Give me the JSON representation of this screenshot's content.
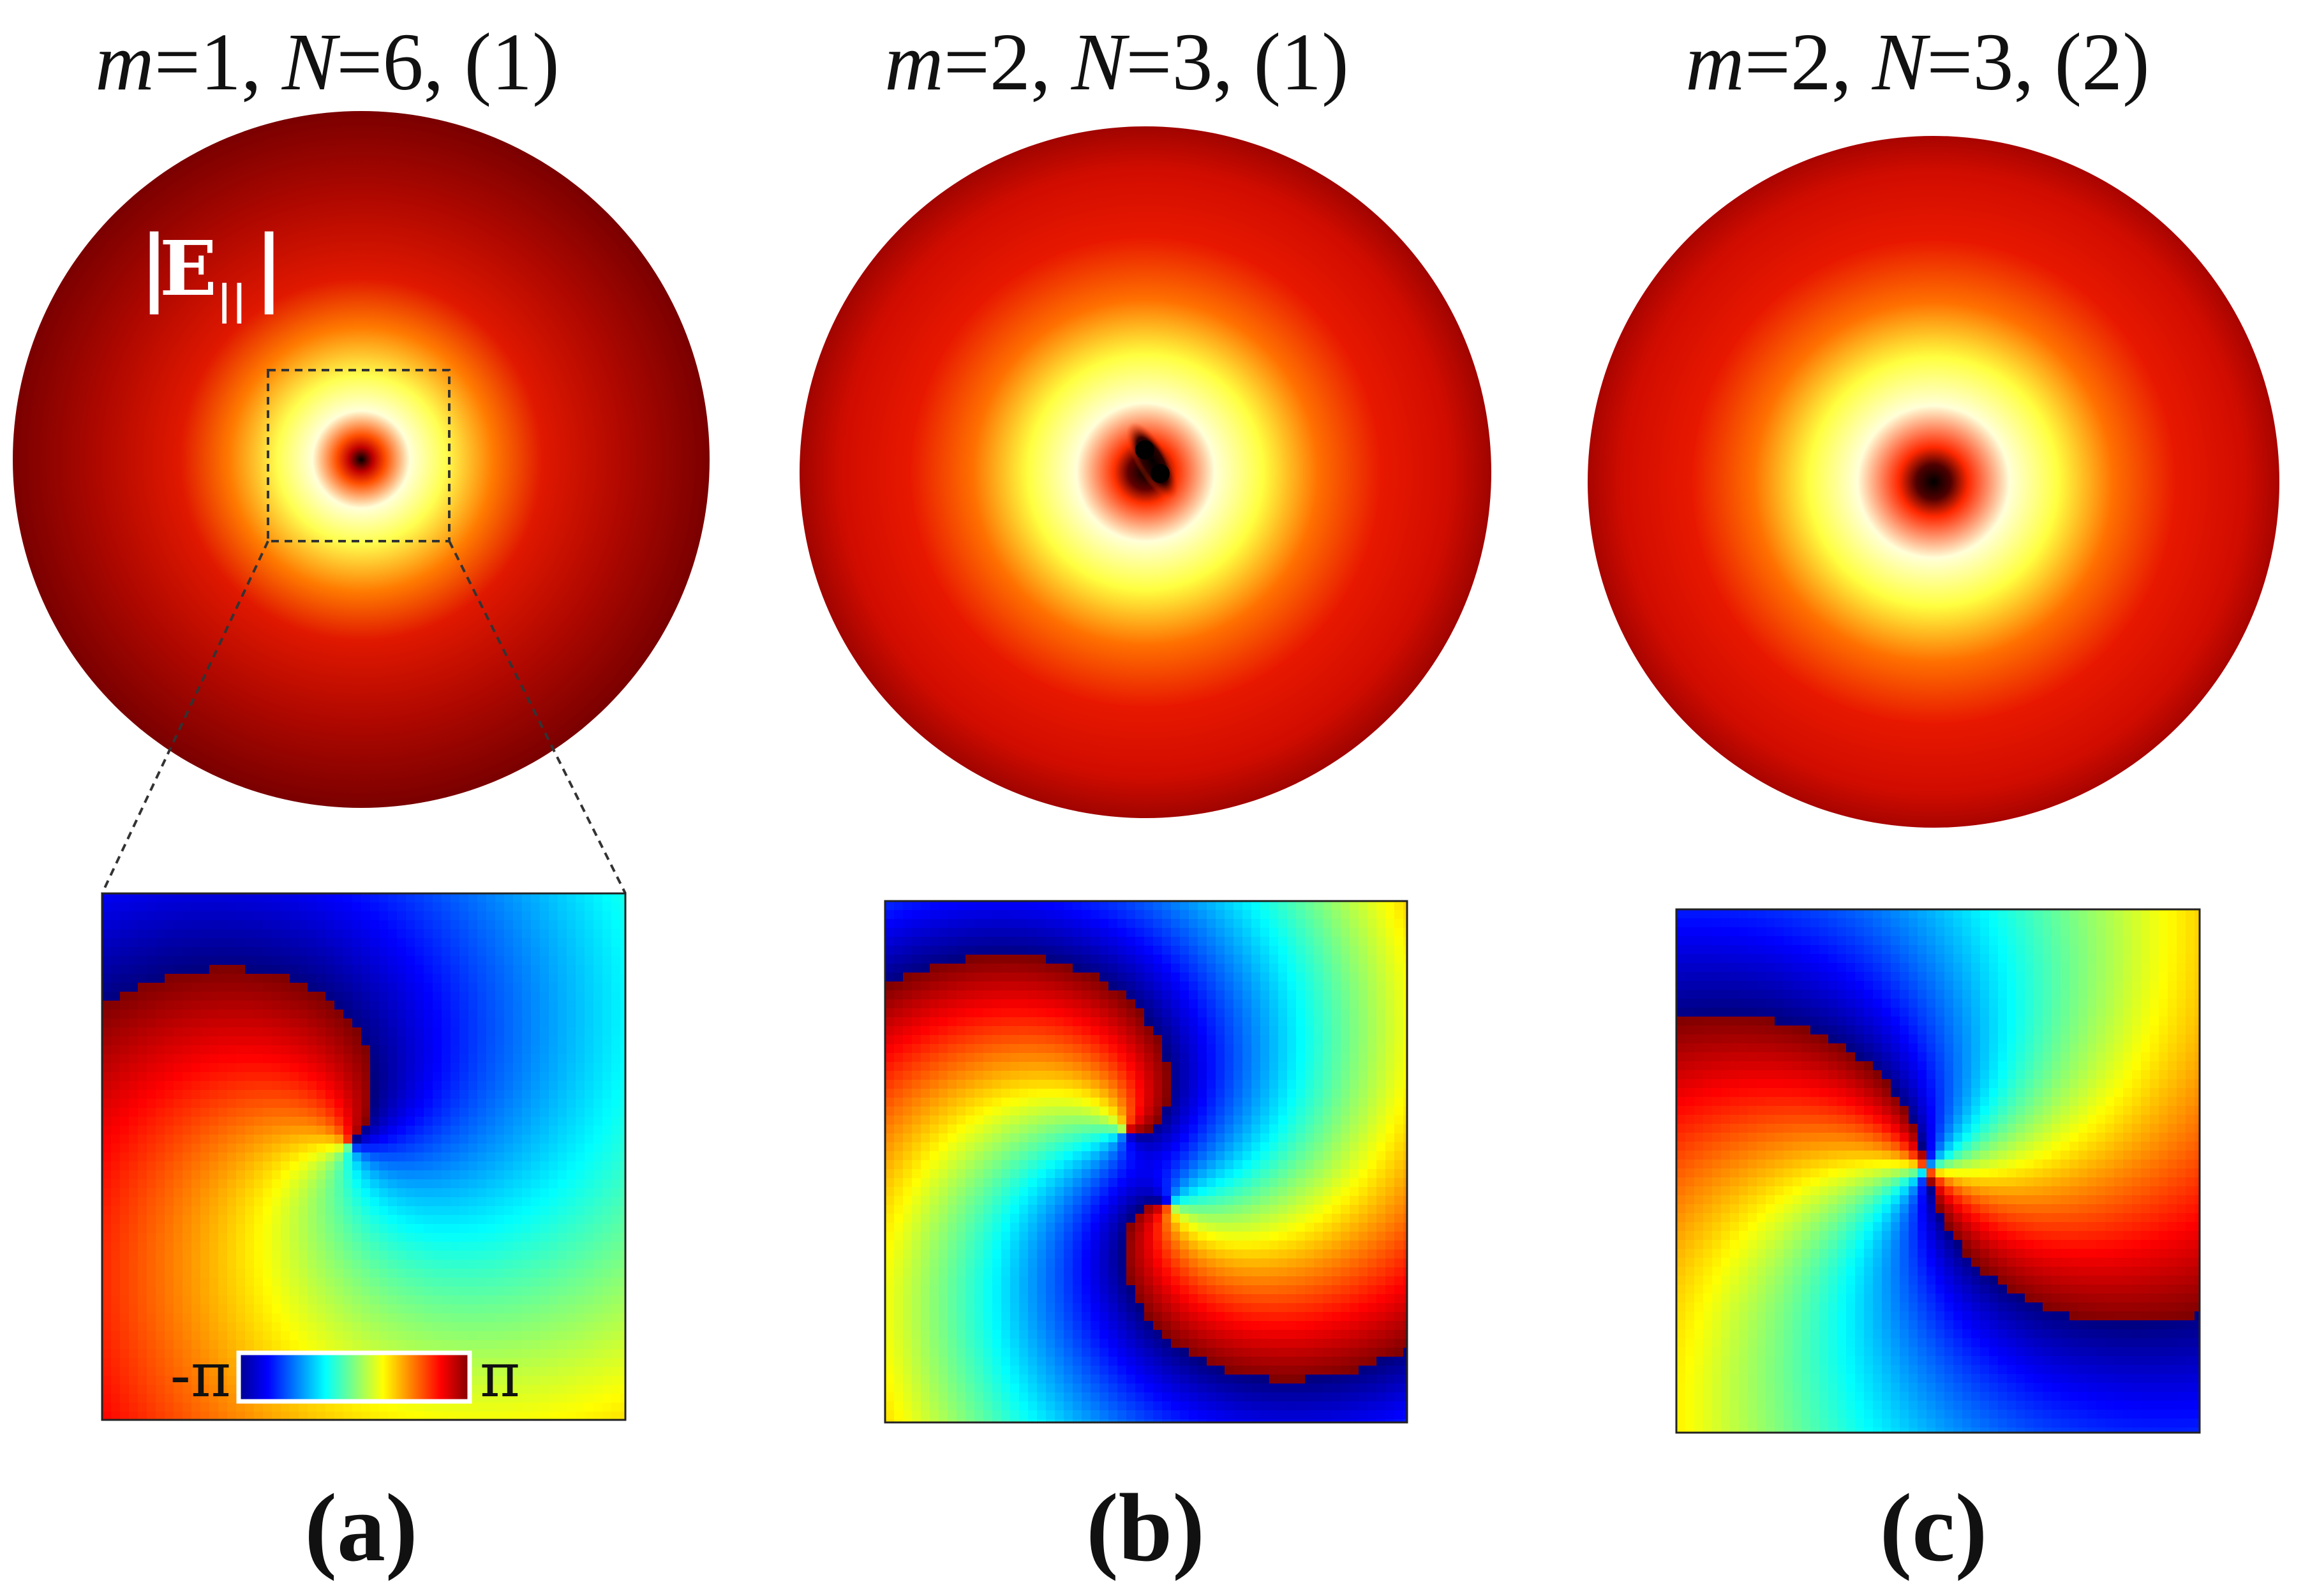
{
  "figure": {
    "panels": [
      {
        "id": "a",
        "title": {
          "m_symbol": "m",
          "m_value": "=1, ",
          "n_symbol": "N",
          "n_value": "=6, (1)"
        },
        "label_open": "(",
        "label_letter": "a",
        "label_close": ")",
        "field_label": {
          "bar_left": "|",
          "letter": "E",
          "subscript": "||",
          "bar_right": "|"
        },
        "colorbar": {
          "min_label": "-π",
          "max_label": "π"
        },
        "phase_charges": [
          1
        ],
        "amplitude_core": "single"
      },
      {
        "id": "b",
        "title": {
          "m_symbol": "m",
          "m_value": "=2, ",
          "n_symbol": "N",
          "n_value": "=3, (1)"
        },
        "label_open": "(",
        "label_letter": "b",
        "label_close": ")",
        "phase_charges": [
          1,
          1
        ],
        "amplitude_core": "split"
      },
      {
        "id": "c",
        "title": {
          "m_symbol": "m",
          "m_value": "=2, ",
          "n_symbol": "N",
          "n_value": "=3, (2)"
        },
        "label_open": "(",
        "label_letter": "c",
        "label_close": ")",
        "phase_charges": [
          2
        ],
        "amplitude_core": "single"
      }
    ],
    "colors": {
      "amplitude_outer": "#7a0000",
      "amplitude_mid": "#e01000",
      "amplitude_bright": "#ffff40",
      "amplitude_peak": "#ffffe6",
      "amplitude_core": "#000000",
      "phase_colormap": "jet"
    }
  }
}
